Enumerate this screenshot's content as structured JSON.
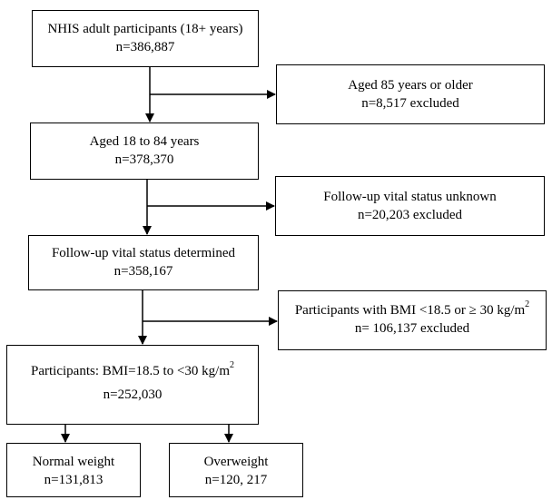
{
  "nodes": {
    "nhis": {
      "line1": "NHIS adult participants (18+ years)",
      "line2": "n=386,887"
    },
    "aged85": {
      "line1": "Aged 85 years or older",
      "line2": "n=8,517 excluded"
    },
    "aged18to84": {
      "line1": "Aged 18 to 84 years",
      "line2": "n=378,370"
    },
    "unknown_status": {
      "line1": "Follow-up vital status unknown",
      "line2": "n=20,203 excluded"
    },
    "determined_status": {
      "line1": "Follow-up vital status determined",
      "line2": "n=358,167"
    },
    "bmi_excluded": {
      "line1_pre": "Participants with BMI <18.5 or ≥ 30 kg/m",
      "line1_sup": "2",
      "line2": "n= 106,137 excluded"
    },
    "bmi_included": {
      "line1_pre": "Participants: BMI=18.5 to <30 kg/m",
      "line1_sup": "2",
      "line2": "n=252,030"
    },
    "normal_weight": {
      "line1": "Normal weight",
      "line2": "n=131,813"
    },
    "overweight": {
      "line1": "Overweight",
      "line2": "n=120, 217"
    }
  },
  "colors": {
    "stroke": "#000000",
    "background": "#ffffff"
  }
}
